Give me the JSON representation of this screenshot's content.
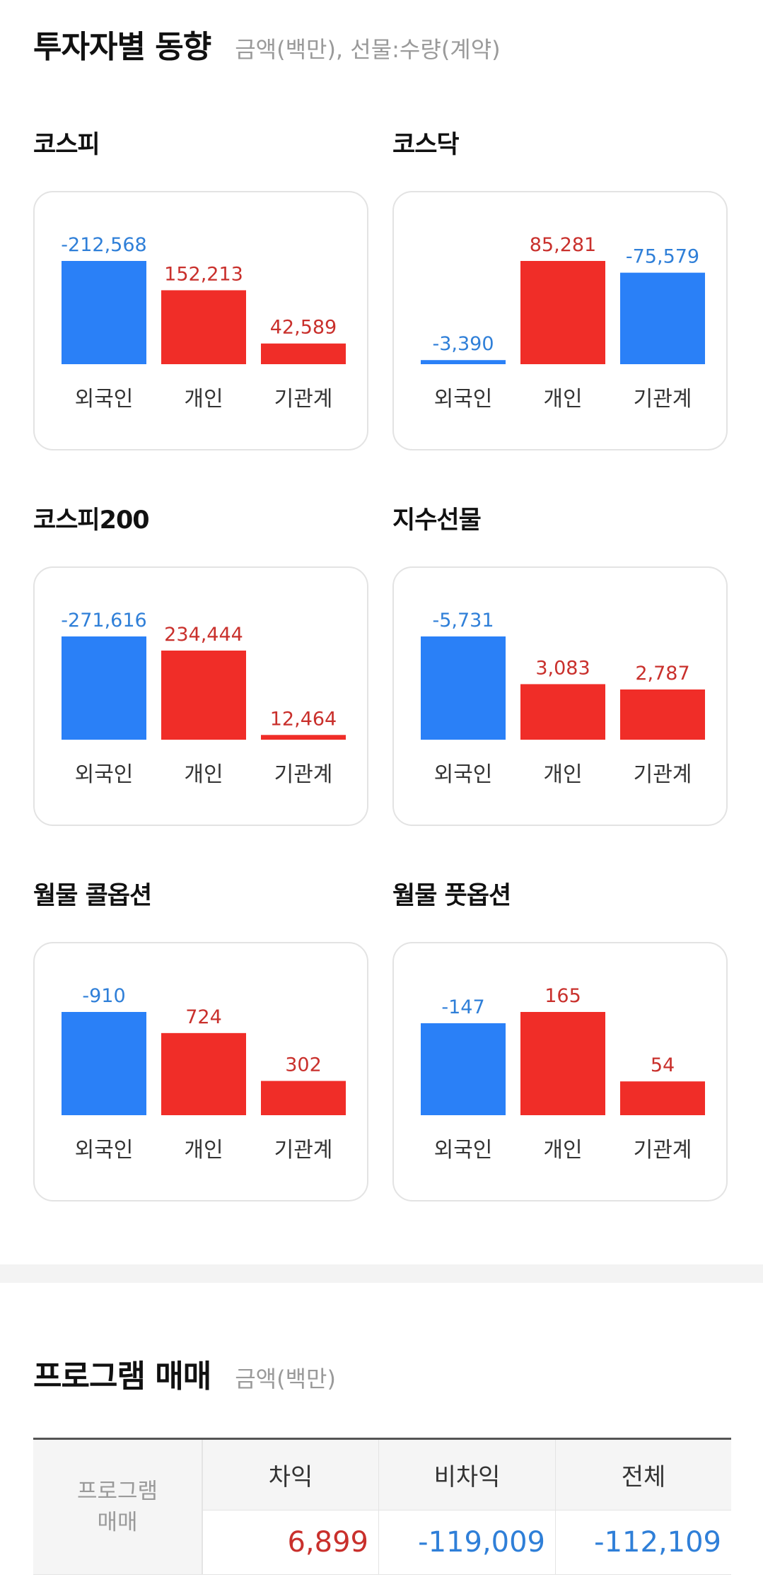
{
  "investor_section": {
    "title": "투자자별 동향",
    "unit_note": "금액(백만), 선물:수량(계약)"
  },
  "colors": {
    "positive": "#f02d28",
    "negative": "#2a80f7",
    "pos_text": "#c9302c",
    "neg_text": "#2f7fd8"
  },
  "chart_data": [
    {
      "type": "bar",
      "title": "코스피",
      "categories": [
        "외국인",
        "개인",
        "기관계"
      ],
      "values": [
        -212568,
        152213,
        42589
      ],
      "labels": [
        "-212,568",
        "152,213",
        "42,589"
      ]
    },
    {
      "type": "bar",
      "title": "코스닥",
      "categories": [
        "외국인",
        "개인",
        "기관계"
      ],
      "values": [
        -3390,
        85281,
        -75579
      ],
      "labels": [
        "-3,390",
        "85,281",
        "-75,579"
      ]
    },
    {
      "type": "bar",
      "title": "코스피200",
      "categories": [
        "외국인",
        "개인",
        "기관계"
      ],
      "values": [
        -271616,
        234444,
        12464
      ],
      "labels": [
        "-271,616",
        "234,444",
        "12,464"
      ]
    },
    {
      "type": "bar",
      "title": "지수선물",
      "categories": [
        "외국인",
        "개인",
        "기관계"
      ],
      "values": [
        -5731,
        3083,
        2787
      ],
      "labels": [
        "-5,731",
        "3,083",
        "2,787"
      ]
    },
    {
      "type": "bar",
      "title": "월물 콜옵션",
      "categories": [
        "외국인",
        "개인",
        "기관계"
      ],
      "values": [
        -910,
        724,
        302
      ],
      "labels": [
        "-910",
        "724",
        "302"
      ]
    },
    {
      "type": "bar",
      "title": "월물 풋옵션",
      "categories": [
        "외국인",
        "개인",
        "기관계"
      ],
      "values": [
        -147,
        165,
        54
      ],
      "labels": [
        "-147",
        "165",
        "54"
      ]
    }
  ],
  "program_section": {
    "title": "프로그램 매매",
    "unit_note": "금액(백만)",
    "row_header_line1": "프로그램",
    "row_header_line2": "매매",
    "columns": [
      {
        "header": "차익",
        "value": "6,899",
        "sign": "positive"
      },
      {
        "header": "비차익",
        "value": "-119,009",
        "sign": "negative"
      },
      {
        "header": "전체",
        "value": "-112,109",
        "sign": "negative"
      }
    ]
  }
}
